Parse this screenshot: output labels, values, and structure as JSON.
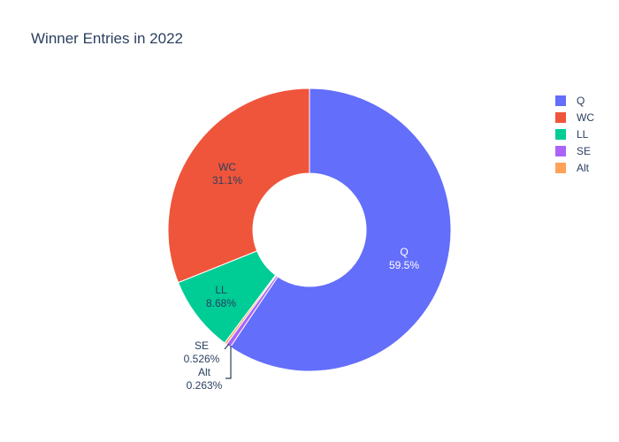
{
  "chart_data": {
    "type": "pie",
    "hole": 0.4,
    "title": "Winner Entries in 2022",
    "slices": [
      {
        "label": "Q",
        "value": 59.5,
        "pct_text": "59.5%",
        "color": "#636efa"
      },
      {
        "label": "SE",
        "value": 0.526,
        "pct_text": "0.526%",
        "color": "#ab63fa"
      },
      {
        "label": "Alt",
        "value": 0.263,
        "pct_text": "0.263%",
        "color": "#ffa15a"
      },
      {
        "label": "LL",
        "value": 8.68,
        "pct_text": "8.68%",
        "color": "#00cc96"
      },
      {
        "label": "WC",
        "value": 31.1,
        "pct_text": "31.1%",
        "color": "#ef553b"
      }
    ],
    "legend": {
      "position": "top-right",
      "items": [
        {
          "label": "Q",
          "color": "#636efa"
        },
        {
          "label": "WC",
          "color": "#ef553b"
        },
        {
          "label": "LL",
          "color": "#00cc96"
        },
        {
          "label": "SE",
          "color": "#ab63fa"
        },
        {
          "label": "Alt",
          "color": "#ffa15a"
        }
      ]
    }
  }
}
